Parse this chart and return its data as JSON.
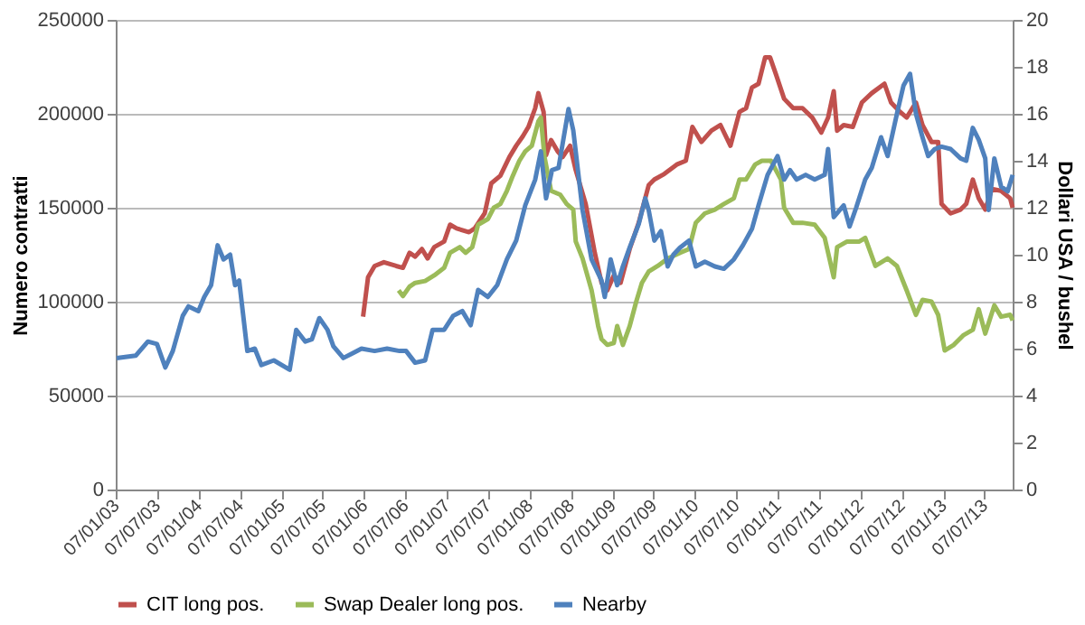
{
  "chart_data": {
    "type": "line",
    "ylabel": "Numero contratti",
    "y2label": "Dollari USA / bushel",
    "xlim": [
      "2003-01-07",
      "2013-11-10"
    ],
    "xticks": [
      {
        "value": "2003-01-07",
        "label": "07/01/03"
      },
      {
        "value": "2003-07-07",
        "label": "07/07/03"
      },
      {
        "value": "2004-01-07",
        "label": "07/01/04"
      },
      {
        "value": "2004-07-07",
        "label": "07/07/04"
      },
      {
        "value": "2005-01-07",
        "label": "07/01/05"
      },
      {
        "value": "2005-07-07",
        "label": "07/07/05"
      },
      {
        "value": "2006-01-07",
        "label": "07/01/06"
      },
      {
        "value": "2006-07-07",
        "label": "07/07/06"
      },
      {
        "value": "2007-01-07",
        "label": "07/01/07"
      },
      {
        "value": "2007-07-07",
        "label": "07/07/07"
      },
      {
        "value": "2008-01-07",
        "label": "07/01/08"
      },
      {
        "value": "2008-07-07",
        "label": "07/07/08"
      },
      {
        "value": "2009-01-07",
        "label": "07/01/09"
      },
      {
        "value": "2009-07-07",
        "label": "07/07/09"
      },
      {
        "value": "2010-01-07",
        "label": "07/01/10"
      },
      {
        "value": "2010-07-07",
        "label": "07/07/10"
      },
      {
        "value": "2011-01-07",
        "label": "07/01/11"
      },
      {
        "value": "2011-07-07",
        "label": "07/07/11"
      },
      {
        "value": "2012-01-07",
        "label": "07/01/12"
      },
      {
        "value": "2012-07-07",
        "label": "07/07/12"
      },
      {
        "value": "2013-01-07",
        "label": "07/01/13"
      },
      {
        "value": "2013-07-07",
        "label": "07/07/13"
      }
    ],
    "ylim": [
      0,
      250000
    ],
    "yticks": [
      0,
      50000,
      100000,
      150000,
      200000,
      250000
    ],
    "y2lim": [
      0,
      20
    ],
    "y2ticks": [
      0,
      2,
      4,
      6,
      8,
      10,
      12,
      14,
      16,
      18,
      20
    ],
    "grid": "y",
    "legend": "bottom",
    "line_style": "solid",
    "marker": "none",
    "series": [
      {
        "name": "CIT long pos.",
        "color": "#c0504d",
        "x": [
          "2006-01-03",
          "2006-01-25",
          "2006-02-23",
          "2006-04-05",
          "2006-05-29",
          "2006-06-28",
          "2006-07-27",
          "2006-08-21",
          "2006-09-20",
          "2006-10-15",
          "2006-11-13",
          "2006-12-27",
          "2007-01-22",
          "2007-02-20",
          "2007-04-16",
          "2007-05-11",
          "2007-06-24",
          "2007-07-23",
          "2007-09-01",
          "2007-10-11",
          "2007-11-10",
          "2007-12-09",
          "2008-01-03",
          "2008-02-02",
          "2008-02-16",
          "2008-03-10",
          "2008-03-21",
          "2008-04-12",
          "2008-05-11",
          "2008-06-02",
          "2008-07-05",
          "2008-07-30",
          "2008-09-12",
          "2008-10-22",
          "2008-11-21",
          "2008-12-16",
          "2009-01-14",
          "2009-02-13",
          "2009-03-25",
          "2009-05-04",
          "2009-06-17",
          "2009-07-12",
          "2009-08-25",
          "2009-10-19",
          "2009-11-28",
          "2009-12-27",
          "2010-02-05",
          "2010-03-21",
          "2010-04-30",
          "2010-06-13",
          "2010-07-23",
          "2010-08-21",
          "2010-09-16",
          "2010-10-15",
          "2010-11-13",
          "2010-12-05",
          "2010-12-31",
          "2011-02-05",
          "2011-03-17",
          "2011-04-27",
          "2011-06-09",
          "2011-07-19",
          "2011-08-18",
          "2011-09-12",
          "2011-09-27",
          "2011-10-26",
          "2011-12-05",
          "2012-01-14",
          "2012-02-27",
          "2012-04-23",
          "2012-05-22",
          "2012-07-01",
          "2012-07-30",
          "2012-09-09",
          "2012-10-08",
          "2012-11-17",
          "2012-12-16",
          "2012-12-31",
          "2013-02-09",
          "2013-03-25",
          "2013-04-19",
          "2013-05-18",
          "2013-06-13",
          "2013-07-12",
          "2013-08-10",
          "2013-09-20",
          "2013-10-30",
          "2013-11-10"
        ],
        "values": [
          92000,
          113000,
          119000,
          121000,
          119000,
          118000,
          126000,
          124000,
          128000,
          123000,
          129000,
          132000,
          141000,
          139000,
          137000,
          139000,
          147000,
          163000,
          167000,
          177000,
          183000,
          188000,
          193000,
          203000,
          211000,
          201000,
          178000,
          186000,
          180000,
          177000,
          183000,
          170000,
          152000,
          126000,
          110000,
          106000,
          114000,
          110000,
          128000,
          142000,
          162000,
          165000,
          168000,
          173000,
          175000,
          193000,
          185000,
          191000,
          194000,
          183000,
          201000,
          203000,
          214000,
          216000,
          230000,
          230000,
          221000,
          208000,
          203000,
          203000,
          198000,
          190000,
          198000,
          212000,
          191000,
          194000,
          193000,
          206000,
          211000,
          216000,
          206000,
          201000,
          198000,
          206000,
          194000,
          185000,
          185000,
          152000,
          147000,
          149000,
          152000,
          165000,
          155000,
          149000,
          160000,
          159000,
          155000,
          150000
        ]
      },
      {
        "name": "Swap Dealer long pos.",
        "color": "#9bbb59",
        "x": [
          "2006-06-09",
          "2006-06-28",
          "2006-07-27",
          "2006-08-21",
          "2006-10-04",
          "2006-11-13",
          "2006-12-27",
          "2007-01-22",
          "2007-03-06",
          "2007-04-01",
          "2007-04-30",
          "2007-05-26",
          "2007-07-08",
          "2007-08-03",
          "2007-09-01",
          "2007-09-30",
          "2007-10-26",
          "2007-11-24",
          "2007-12-20",
          "2008-01-18",
          "2008-02-16",
          "2008-02-27",
          "2008-03-14",
          "2008-04-12",
          "2008-05-22",
          "2008-06-20",
          "2008-07-19",
          "2008-07-30",
          "2008-08-29",
          "2008-10-08",
          "2008-11-06",
          "2008-11-21",
          "2008-12-16",
          "2009-01-14",
          "2009-01-29",
          "2009-02-23",
          "2009-03-25",
          "2009-04-23",
          "2009-05-18",
          "2009-06-17",
          "2009-07-27",
          "2009-09-09",
          "2009-11-02",
          "2009-12-12",
          "2010-01-11",
          "2010-02-20",
          "2010-04-05",
          "2010-05-15",
          "2010-06-28",
          "2010-07-23",
          "2010-08-21",
          "2010-09-30",
          "2010-10-30",
          "2010-12-09",
          "2011-01-22",
          "2011-02-05",
          "2011-03-17",
          "2011-04-27",
          "2011-06-20",
          "2011-08-03",
          "2011-09-12",
          "2011-09-27",
          "2011-11-10",
          "2012-01-03",
          "2012-01-29",
          "2012-03-14",
          "2012-05-07",
          "2012-06-17",
          "2012-07-30",
          "2012-09-09",
          "2012-10-08",
          "2012-11-17",
          "2012-12-16",
          "2013-01-14",
          "2013-02-23",
          "2013-04-05",
          "2013-05-18",
          "2013-06-13",
          "2013-07-12",
          "2013-08-21",
          "2013-09-20",
          "2013-10-30",
          "2013-11-10"
        ],
        "values": [
          106000,
          103000,
          108000,
          110000,
          111000,
          114000,
          118000,
          126000,
          129000,
          126000,
          129000,
          141000,
          144000,
          150000,
          152000,
          159000,
          167000,
          175000,
          180000,
          183000,
          196000,
          198000,
          177000,
          159000,
          157000,
          152000,
          149000,
          132000,
          123000,
          106000,
          87000,
          80000,
          77000,
          78000,
          87000,
          77000,
          87000,
          100000,
          110000,
          116000,
          119000,
          123000,
          126000,
          128000,
          142000,
          147000,
          149000,
          152000,
          155000,
          165000,
          165000,
          173000,
          175000,
          175000,
          165000,
          150000,
          142000,
          142000,
          141000,
          134000,
          113000,
          129000,
          132000,
          132000,
          134000,
          119000,
          123000,
          119000,
          106000,
          93000,
          101000,
          100000,
          93000,
          74000,
          77000,
          82000,
          85000,
          96000,
          83000,
          98000,
          92000,
          93000,
          90000
        ]
      },
      {
        "name": "Nearby",
        "color": "#4f81bd",
        "axis": "y2",
        "x": [
          "2003-01-11",
          "2003-04-05",
          "2003-05-29",
          "2003-07-08",
          "2003-08-14",
          "2003-09-16",
          "2003-10-30",
          "2003-11-24",
          "2004-01-07",
          "2004-02-02",
          "2004-03-03",
          "2004-04-01",
          "2004-04-27",
          "2004-05-26",
          "2004-06-17",
          "2004-07-05",
          "2004-08-10",
          "2004-09-12",
          "2004-10-11",
          "2004-12-05",
          "2005-02-13",
          "2005-03-14",
          "2005-04-23",
          "2005-05-22",
          "2005-06-24",
          "2005-07-30",
          "2005-08-25",
          "2005-10-08",
          "2005-11-17",
          "2005-12-27",
          "2006-02-23",
          "2006-04-19",
          "2006-06-13",
          "2006-07-12",
          "2006-08-21",
          "2006-10-04",
          "2006-11-06",
          "2006-12-27",
          "2007-02-05",
          "2007-03-17",
          "2007-04-23",
          "2007-05-26",
          "2007-07-08",
          "2007-08-18",
          "2007-09-30",
          "2007-11-10",
          "2007-12-20",
          "2008-02-02",
          "2008-02-27",
          "2008-03-21",
          "2008-04-16",
          "2008-05-15",
          "2008-06-28",
          "2008-07-19",
          "2008-08-29",
          "2008-10-08",
          "2008-11-21",
          "2008-12-05",
          "2008-12-31",
          "2009-01-29",
          "2009-02-23",
          "2009-03-25",
          "2009-05-04",
          "2009-06-02",
          "2009-06-17",
          "2009-07-12",
          "2009-08-10",
          "2009-09-09",
          "2009-10-04",
          "2009-11-02",
          "2009-12-12",
          "2010-01-11",
          "2010-02-20",
          "2010-04-05",
          "2010-05-15",
          "2010-06-28",
          "2010-08-07",
          "2010-09-16",
          "2010-10-15",
          "2010-11-24",
          "2011-01-07",
          "2011-02-05",
          "2011-03-03",
          "2011-04-01",
          "2011-05-11",
          "2011-06-20",
          "2011-08-03",
          "2011-08-18",
          "2011-09-12",
          "2011-10-26",
          "2011-11-21",
          "2011-12-20",
          "2012-01-29",
          "2012-02-27",
          "2012-04-08",
          "2012-05-07",
          "2012-06-17",
          "2012-07-16",
          "2012-08-14",
          "2012-09-09",
          "2012-10-08",
          "2012-11-02",
          "2012-12-01",
          "2012-12-31",
          "2013-02-09",
          "2013-03-25",
          "2013-04-19",
          "2013-05-18",
          "2013-06-13",
          "2013-07-12",
          "2013-07-27",
          "2013-08-21",
          "2013-09-20",
          "2013-10-19",
          "2013-11-10"
        ],
        "values": [
          5.6,
          5.7,
          6.3,
          6.2,
          5.2,
          5.9,
          7.4,
          7.8,
          7.6,
          8.2,
          8.7,
          10.4,
          9.8,
          10.0,
          8.7,
          8.9,
          5.9,
          6.0,
          5.3,
          5.5,
          5.1,
          6.8,
          6.3,
          6.4,
          7.3,
          6.8,
          6.1,
          5.6,
          5.8,
          6.0,
          5.9,
          6.0,
          5.9,
          5.9,
          5.4,
          5.5,
          6.8,
          6.8,
          7.4,
          7.6,
          7.0,
          8.5,
          8.2,
          8.7,
          9.8,
          10.6,
          12.1,
          13.2,
          14.4,
          12.4,
          13.6,
          13.7,
          16.2,
          15.3,
          11.9,
          9.8,
          8.9,
          8.2,
          9.8,
          8.7,
          9.5,
          10.3,
          11.3,
          12.4,
          11.9,
          10.6,
          11.0,
          9.5,
          10.0,
          10.3,
          10.6,
          9.5,
          9.7,
          9.5,
          9.4,
          9.8,
          10.4,
          11.1,
          12.1,
          13.4,
          14.2,
          13.2,
          13.6,
          13.2,
          13.4,
          13.2,
          13.4,
          14.5,
          11.6,
          12.1,
          11.2,
          12.0,
          13.2,
          13.7,
          15.0,
          14.2,
          16.0,
          17.2,
          17.7,
          16.0,
          15.0,
          14.2,
          14.5,
          14.6,
          14.5,
          14.1,
          14.0,
          15.4,
          14.9,
          14.1,
          11.9,
          14.1,
          12.9,
          12.7,
          13.4
        ]
      }
    ]
  }
}
